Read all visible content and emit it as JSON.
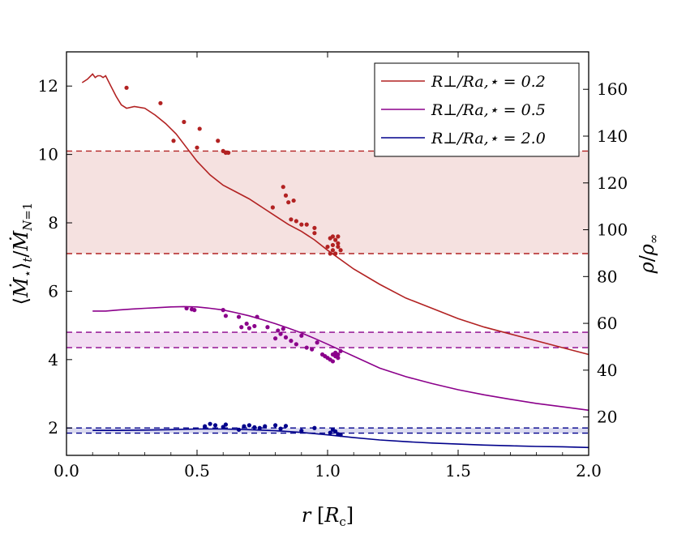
{
  "chart_data": {
    "type": "line",
    "xlabel": "r [R_c]",
    "ylabel_left": "⟨Ṁ⋆⟩_t / Ṁ_{N=1}",
    "ylabel_right": "ρ/ρ∞",
    "xlim": [
      0.0,
      2.0
    ],
    "ylim_left": [
      1.2,
      13.0
    ],
    "ylim_right": [
      3.6,
      176.0
    ],
    "x_ticks": [
      "0.0",
      "0.5",
      "1.0",
      "1.5",
      "2.0"
    ],
    "y_ticks_left": [
      "2",
      "4",
      "6",
      "8",
      "10",
      "12"
    ],
    "y_ticks_right": [
      "20",
      "40",
      "60",
      "80",
      "100",
      "120",
      "140",
      "160"
    ],
    "legend_position": "top-right",
    "series": [
      {
        "name": "R⊥/Ra,⋆ = 0.2",
        "color": "#b22222",
        "band_color": "#f5e1e0",
        "band": [
          7.1,
          10.1
        ],
        "line_x": [
          0.06,
          0.08,
          0.1,
          0.11,
          0.12,
          0.13,
          0.14,
          0.15,
          0.17,
          0.19,
          0.21,
          0.23,
          0.26,
          0.3,
          0.34,
          0.38,
          0.42,
          0.46,
          0.5,
          0.55,
          0.6,
          0.65,
          0.7,
          0.75,
          0.8,
          0.85,
          0.9,
          0.95,
          1.0,
          1.1,
          1.2,
          1.3,
          1.4,
          1.5,
          1.6,
          1.7,
          1.8,
          1.9,
          2.0
        ],
        "line_y": [
          12.1,
          12.2,
          12.35,
          12.25,
          12.3,
          12.3,
          12.25,
          12.3,
          12.0,
          11.7,
          11.45,
          11.35,
          11.4,
          11.35,
          11.15,
          10.9,
          10.6,
          10.2,
          9.8,
          9.4,
          9.1,
          8.9,
          8.7,
          8.45,
          8.2,
          7.95,
          7.75,
          7.5,
          7.2,
          6.65,
          6.2,
          5.8,
          5.5,
          5.2,
          4.95,
          4.75,
          4.55,
          4.35,
          4.15
        ],
        "scatter_x": [
          0.23,
          0.36,
          0.41,
          0.45,
          0.5,
          0.51,
          0.58,
          0.6,
          0.61,
          0.62,
          0.79,
          0.83,
          0.84,
          0.85,
          0.86,
          0.87,
          0.88,
          0.9,
          0.92,
          0.95,
          0.95,
          1.0,
          1.01,
          1.01,
          1.02,
          1.02,
          1.02,
          1.03,
          1.03,
          1.04,
          1.04,
          1.04,
          1.05
        ],
        "scatter_y": [
          11.95,
          11.5,
          10.4,
          10.95,
          10.2,
          10.75,
          10.4,
          10.1,
          10.05,
          10.05,
          8.45,
          9.05,
          8.8,
          8.6,
          8.1,
          8.65,
          8.05,
          7.95,
          7.95,
          7.85,
          7.7,
          7.3,
          7.55,
          7.1,
          7.35,
          7.6,
          7.2,
          7.5,
          7.1,
          7.3,
          7.4,
          7.6,
          7.2
        ]
      },
      {
        "name": "R⊥/Ra,⋆ = 0.5",
        "color": "#8b008b",
        "band_color": "#f3ddf3",
        "band": [
          4.35,
          4.8
        ],
        "line_x": [
          0.1,
          0.15,
          0.2,
          0.25,
          0.3,
          0.35,
          0.4,
          0.45,
          0.5,
          0.55,
          0.6,
          0.65,
          0.7,
          0.75,
          0.8,
          0.85,
          0.9,
          0.95,
          1.0,
          1.1,
          1.2,
          1.3,
          1.4,
          1.5,
          1.6,
          1.7,
          1.8,
          1.9,
          2.0
        ],
        "line_y": [
          5.42,
          5.42,
          5.45,
          5.48,
          5.5,
          5.52,
          5.54,
          5.55,
          5.54,
          5.5,
          5.45,
          5.37,
          5.28,
          5.17,
          5.05,
          4.92,
          4.78,
          4.62,
          4.45,
          4.1,
          3.75,
          3.5,
          3.3,
          3.12,
          2.97,
          2.84,
          2.72,
          2.62,
          2.52
        ],
        "scatter_x": [
          0.46,
          0.48,
          0.49,
          0.6,
          0.61,
          0.66,
          0.67,
          0.69,
          0.7,
          0.72,
          0.73,
          0.77,
          0.8,
          0.81,
          0.82,
          0.83,
          0.84,
          0.86,
          0.88,
          0.9,
          0.92,
          0.94,
          0.96,
          0.98,
          0.99,
          1.0,
          1.01,
          1.02,
          1.02,
          1.03,
          1.03,
          1.04,
          1.04,
          1.05
        ],
        "scatter_y": [
          5.5,
          5.47,
          5.45,
          5.45,
          5.28,
          5.25,
          4.95,
          5.05,
          4.92,
          4.98,
          5.25,
          4.95,
          4.62,
          4.85,
          4.75,
          4.9,
          4.65,
          4.55,
          4.45,
          4.7,
          4.35,
          4.3,
          4.5,
          4.15,
          4.1,
          4.05,
          4.0,
          4.15,
          3.95,
          4.1,
          4.2,
          4.05,
          4.15,
          4.25
        ]
      },
      {
        "name": "R⊥/Ra,⋆ = 2.0",
        "color": "#00008b",
        "band_color": "#dadaf0",
        "band": [
          1.85,
          2.0
        ],
        "line_x": [
          0.1,
          0.2,
          0.3,
          0.4,
          0.5,
          0.6,
          0.7,
          0.8,
          0.9,
          1.0,
          1.1,
          1.2,
          1.3,
          1.4,
          1.5,
          1.6,
          1.7,
          1.8,
          1.9,
          2.0
        ],
        "line_y": [
          1.93,
          1.93,
          1.94,
          1.95,
          1.97,
          1.97,
          1.95,
          1.92,
          1.87,
          1.8,
          1.72,
          1.65,
          1.6,
          1.56,
          1.53,
          1.5,
          1.48,
          1.46,
          1.45,
          1.43
        ],
        "scatter_x": [
          0.53,
          0.55,
          0.57,
          0.6,
          0.61,
          0.66,
          0.68,
          0.7,
          0.72,
          0.74,
          0.76,
          0.8,
          0.82,
          0.84,
          0.9,
          0.95,
          1.01,
          1.02,
          1.03,
          1.04,
          1.05
        ],
        "scatter_y": [
          2.05,
          2.12,
          2.08,
          2.03,
          2.1,
          1.95,
          2.05,
          2.08,
          2.02,
          2.0,
          2.05,
          2.08,
          1.98,
          2.06,
          1.92,
          2.0,
          1.86,
          1.95,
          1.9,
          1.82,
          1.8
        ]
      }
    ]
  }
}
